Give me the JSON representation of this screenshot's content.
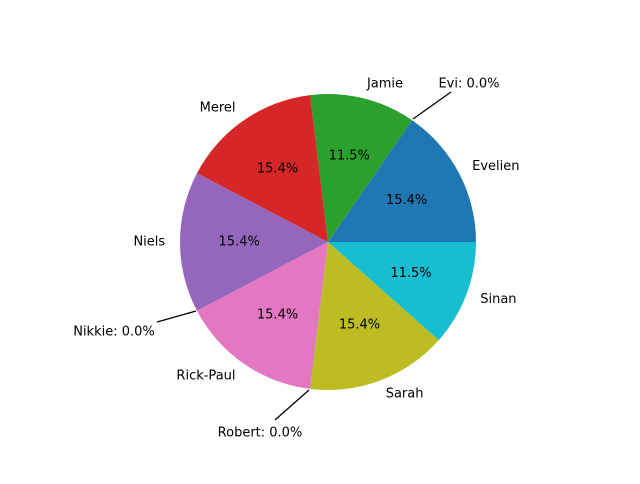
{
  "chart_data": {
    "type": "pie",
    "start_angle_deg": 0,
    "direction": "counterclockwise",
    "slices": [
      {
        "label": "Evelien",
        "value": 4,
        "percent_label": "15.4%",
        "color": "#1f77b4"
      },
      {
        "label": "Evi",
        "value": 0,
        "percent_label": "0.0%",
        "color": "#ff7f0e"
      },
      {
        "label": "Jamie",
        "value": 3,
        "percent_label": "11.5%",
        "color": "#2ca02c"
      },
      {
        "label": "Merel",
        "value": 4,
        "percent_label": "15.4%",
        "color": "#d62728"
      },
      {
        "label": "Niels",
        "value": 4,
        "percent_label": "15.4%",
        "color": "#9467bd"
      },
      {
        "label": "Nikkie",
        "value": 0,
        "percent_label": "0.0%",
        "color": "#8c564b"
      },
      {
        "label": "Rick-Paul",
        "value": 4,
        "percent_label": "15.4%",
        "color": "#e377c2"
      },
      {
        "label": "Robert",
        "value": 0,
        "percent_label": "0.0%",
        "color": "#7f7f7f"
      },
      {
        "label": "Sarah",
        "value": 4,
        "percent_label": "15.4%",
        "color": "#bcbd22"
      },
      {
        "label": "Sinan",
        "value": 3,
        "percent_label": "11.5%",
        "color": "#17becf"
      }
    ],
    "zero_slice_annotations": [
      {
        "label": "Evi",
        "text": "Evi: 0.0%"
      },
      {
        "label": "Nikkie",
        "text": "Nikkie: 0.0%"
      },
      {
        "label": "Robert",
        "text": "Robert: 0.0%"
      }
    ]
  }
}
